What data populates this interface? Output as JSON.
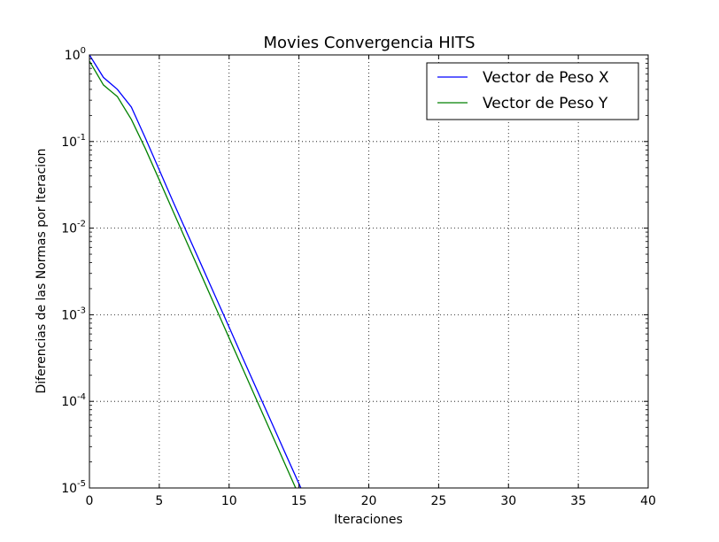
{
  "chart_data": {
    "type": "line",
    "title": "Movies Convergencia HITS",
    "xlabel": "Iteraciones",
    "ylabel": "Diferencias de las Normas por Iteracion",
    "xlim": [
      0,
      40
    ],
    "ylim": [
      1e-05,
      1
    ],
    "yscale": "log",
    "grid": true,
    "legend_position": "top-right",
    "x_ticks": [
      "0",
      "5",
      "10",
      "15",
      "20",
      "25",
      "30",
      "35",
      "40"
    ],
    "y_ticks": [
      {
        "base": "10",
        "exp": "0",
        "value": 1
      },
      {
        "base": "10",
        "exp": "-1",
        "value": 0.1
      },
      {
        "base": "10",
        "exp": "-2",
        "value": 0.01
      },
      {
        "base": "10",
        "exp": "-3",
        "value": 0.001
      },
      {
        "base": "10",
        "exp": "-4",
        "value": 0.0001
      },
      {
        "base": "10",
        "exp": "-5",
        "value": 1e-05
      }
    ],
    "series": [
      {
        "name": "Vector de Peso X",
        "color": "#0000ff",
        "x": [
          0,
          1,
          2,
          3,
          4,
          5,
          6,
          7,
          8,
          9,
          10,
          11,
          12,
          13,
          14,
          15,
          16
        ],
        "y": [
          1.0,
          0.55,
          0.4,
          0.25,
          0.11,
          0.047,
          0.02,
          0.0087,
          0.0038,
          0.00165,
          0.00072,
          0.00031,
          0.000135,
          5.9e-05,
          2.56e-05,
          1.12e-05,
          4.9e-06
        ]
      },
      {
        "name": "Vector de Peso Y",
        "color": "#008000",
        "x": [
          0,
          1,
          2,
          3,
          4,
          5,
          6,
          7,
          8,
          9,
          10,
          11,
          12,
          13,
          14,
          15,
          16
        ],
        "y": [
          0.85,
          0.45,
          0.33,
          0.18,
          0.083,
          0.036,
          0.0155,
          0.0067,
          0.0029,
          0.00125,
          0.00054,
          0.000234,
          0.000101,
          4.37e-05,
          1.89e-05,
          8.2e-06,
          3.6e-06
        ]
      }
    ]
  }
}
